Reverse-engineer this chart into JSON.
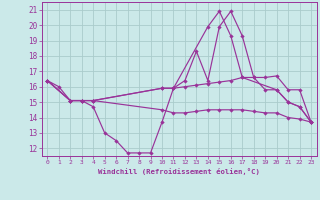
{
  "background_color": "#cbe9e9",
  "grid_color": "#aacccc",
  "line_color": "#993399",
  "xlabel": "Windchill (Refroidissement éolien,°C)",
  "xlim": [
    -0.5,
    23.5
  ],
  "ylim": [
    11.5,
    21.5
  ],
  "yticks": [
    12,
    13,
    14,
    15,
    16,
    17,
    18,
    19,
    20,
    21
  ],
  "xticks": [
    0,
    1,
    2,
    3,
    4,
    5,
    6,
    7,
    8,
    9,
    10,
    11,
    12,
    13,
    14,
    15,
    16,
    17,
    18,
    19,
    20,
    21,
    22,
    23
  ],
  "lines": [
    {
      "x": [
        0,
        1,
        2,
        3,
        4,
        5,
        6,
        7,
        8,
        9,
        10,
        11,
        12,
        13,
        14,
        15,
        16,
        17,
        18,
        19,
        20,
        21,
        22,
        23
      ],
      "y": [
        16.4,
        16.0,
        15.1,
        15.1,
        14.7,
        13.0,
        12.5,
        11.7,
        11.7,
        11.7,
        13.7,
        15.9,
        16.4,
        18.3,
        16.4,
        19.9,
        20.9,
        19.3,
        16.6,
        15.8,
        15.8,
        15.0,
        14.7,
        13.7
      ]
    },
    {
      "x": [
        0,
        2,
        3,
        4,
        10,
        11,
        12,
        13,
        14,
        15,
        16,
        17,
        18,
        19,
        20,
        21,
        22,
        23
      ],
      "y": [
        16.4,
        15.1,
        15.1,
        15.1,
        15.9,
        15.9,
        16.0,
        16.1,
        16.2,
        16.3,
        16.4,
        16.6,
        16.6,
        16.6,
        16.7,
        15.8,
        15.8,
        13.7
      ]
    },
    {
      "x": [
        0,
        2,
        3,
        4,
        10,
        11,
        12,
        13,
        14,
        15,
        16,
        17,
        18,
        19,
        20,
        21,
        22,
        23
      ],
      "y": [
        16.4,
        15.1,
        15.1,
        15.1,
        14.5,
        14.3,
        14.3,
        14.4,
        14.5,
        14.5,
        14.5,
        14.5,
        14.4,
        14.3,
        14.3,
        14.0,
        13.9,
        13.7
      ]
    },
    {
      "x": [
        0,
        2,
        3,
        4,
        10,
        11,
        14,
        15,
        16,
        17,
        20,
        21,
        22,
        23
      ],
      "y": [
        16.4,
        15.1,
        15.1,
        15.1,
        15.9,
        15.9,
        19.9,
        20.9,
        19.3,
        16.6,
        15.8,
        15.0,
        14.7,
        13.7
      ]
    }
  ]
}
